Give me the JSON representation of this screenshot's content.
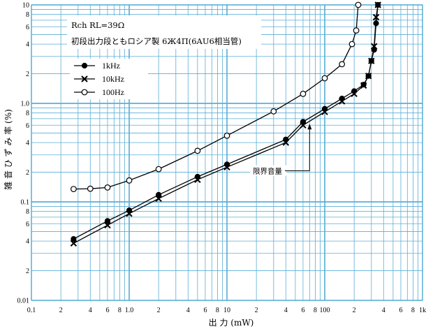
{
  "chart_data": {
    "type": "line",
    "xlabel": "出 力 (mW)",
    "ylabel": "雑 音 ひ ず み 率 (%)",
    "x_scale": "log",
    "y_scale": "log",
    "xlim": [
      0.1,
      1000
    ],
    "ylim": [
      0.01,
      10
    ],
    "grid": true,
    "x_tick_labels": [
      {
        "v": 0.1,
        "t": "0.1"
      },
      {
        "v": 0.2,
        "t": "2"
      },
      {
        "v": 0.4,
        "t": "4"
      },
      {
        "v": 0.6,
        "t": "6"
      },
      {
        "v": 0.8,
        "t": "8"
      },
      {
        "v": 1,
        "t": "1.0"
      },
      {
        "v": 2,
        "t": "2"
      },
      {
        "v": 4,
        "t": "4"
      },
      {
        "v": 6,
        "t": "6"
      },
      {
        "v": 8,
        "t": "8"
      },
      {
        "v": 10,
        "t": "10"
      },
      {
        "v": 20,
        "t": "2"
      },
      {
        "v": 40,
        "t": "4"
      },
      {
        "v": 60,
        "t": "6"
      },
      {
        "v": 80,
        "t": "8"
      },
      {
        "v": 100,
        "t": "100"
      },
      {
        "v": 200,
        "t": "2"
      },
      {
        "v": 400,
        "t": "4"
      },
      {
        "v": 600,
        "t": "6"
      },
      {
        "v": 800,
        "t": "8"
      },
      {
        "v": 1000,
        "t": "1k"
      }
    ],
    "y_tick_labels": [
      {
        "v": 0.01,
        "t": "0.01"
      },
      {
        "v": 0.02,
        "t": "2"
      },
      {
        "v": 0.04,
        "t": "4"
      },
      {
        "v": 0.06,
        "t": "6"
      },
      {
        "v": 0.08,
        "t": "8"
      },
      {
        "v": 0.1,
        "t": "0.1"
      },
      {
        "v": 0.2,
        "t": "2"
      },
      {
        "v": 0.4,
        "t": "4"
      },
      {
        "v": 0.6,
        "t": "6"
      },
      {
        "v": 0.8,
        "t": "8"
      },
      {
        "v": 1,
        "t": "1.0"
      },
      {
        "v": 2,
        "t": "2"
      },
      {
        "v": 4,
        "t": "4"
      },
      {
        "v": 6,
        "t": "6"
      },
      {
        "v": 8,
        "t": "8"
      },
      {
        "v": 10,
        "t": "10"
      }
    ],
    "annotations": {
      "line1": "Rch    RL=39Ω",
      "line2": "初段出力段ともロシア製 6Ж4П(6AU6相当管)",
      "limit_label": "限界音量",
      "limit_x": 70,
      "limit_y": 0.2
    },
    "series": [
      {
        "name": "1kHz",
        "marker": "filled-circle",
        "points": [
          [
            0.27,
            0.042
          ],
          [
            0.6,
            0.064
          ],
          [
            1.0,
            0.082
          ],
          [
            2.0,
            0.118
          ],
          [
            5.0,
            0.18
          ],
          [
            10.0,
            0.24
          ],
          [
            40.0,
            0.43
          ],
          [
            60.0,
            0.65
          ],
          [
            100.0,
            0.88
          ],
          [
            150.0,
            1.12
          ],
          [
            200.0,
            1.33
          ],
          [
            250.0,
            1.55
          ],
          [
            280.0,
            1.9
          ],
          [
            300.0,
            2.7
          ],
          [
            320.0,
            3.5
          ],
          [
            335.0,
            6.5
          ],
          [
            350.0,
            10.0
          ]
        ]
      },
      {
        "name": "10kHz",
        "marker": "cross",
        "points": [
          [
            0.27,
            0.038
          ],
          [
            0.6,
            0.058
          ],
          [
            1.0,
            0.076
          ],
          [
            2.0,
            0.108
          ],
          [
            5.0,
            0.168
          ],
          [
            10.0,
            0.225
          ],
          [
            40.0,
            0.4
          ],
          [
            60.0,
            0.6
          ],
          [
            100.0,
            0.82
          ],
          [
            150.0,
            1.05
          ],
          [
            200.0,
            1.25
          ],
          [
            250.0,
            1.52
          ],
          [
            280.0,
            1.9
          ],
          [
            300.0,
            2.7
          ],
          [
            320.0,
            3.8
          ],
          [
            335.0,
            7.5
          ],
          [
            350.0,
            10.0
          ]
        ]
      },
      {
        "name": "100Hz",
        "marker": "open-circle",
        "points": [
          [
            0.27,
            0.135
          ],
          [
            0.4,
            0.136
          ],
          [
            0.6,
            0.14
          ],
          [
            1.0,
            0.165
          ],
          [
            2.0,
            0.215
          ],
          [
            5.0,
            0.33
          ],
          [
            10.0,
            0.47
          ],
          [
            30.0,
            0.83
          ],
          [
            60.0,
            1.25
          ],
          [
            100.0,
            1.8
          ],
          [
            150.0,
            2.5
          ],
          [
            190.0,
            4.0
          ],
          [
            210.0,
            5.5
          ],
          [
            220.0,
            10.0
          ]
        ]
      }
    ]
  }
}
